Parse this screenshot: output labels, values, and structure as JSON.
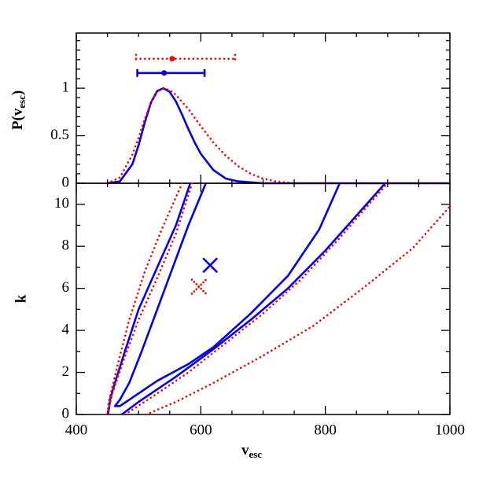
{
  "chart_data": [
    {
      "type": "line",
      "ylabel": [
        "P(v",
        "esc",
        ")"
      ],
      "xlim": [
        400,
        1000
      ],
      "xticks": [
        400,
        600,
        800,
        1000
      ],
      "xminor": [
        450,
        500,
        550,
        650,
        700,
        750,
        850,
        900,
        950
      ],
      "ylim": [
        0,
        1.58
      ],
      "yticks": [
        0,
        0.5,
        1
      ],
      "yminor": [
        0.1,
        0.2,
        0.3,
        0.4,
        0.6,
        0.7,
        0.8,
        0.9,
        1.1,
        1.2,
        1.3,
        1.4,
        1.5
      ],
      "series": [
        {
          "color": "#0000ee",
          "style": "solid",
          "x": [
            450,
            470,
            490,
            500,
            510,
            520,
            530,
            540,
            550,
            560,
            570,
            580,
            590,
            600,
            620,
            640,
            660,
            700,
            1000
          ],
          "values": [
            0,
            0.02,
            0.2,
            0.4,
            0.64,
            0.85,
            0.97,
            1.0,
            0.96,
            0.86,
            0.72,
            0.57,
            0.43,
            0.31,
            0.14,
            0.05,
            0.02,
            0,
            0
          ]
        },
        {
          "color": "#ff0000",
          "style": "dotted",
          "x": [
            450,
            470,
            490,
            500,
            510,
            520,
            530,
            540,
            550,
            560,
            580,
            600,
            620,
            640,
            660,
            680,
            700,
            720,
            750,
            1000
          ],
          "values": [
            0,
            0.06,
            0.3,
            0.48,
            0.68,
            0.85,
            0.96,
            1.0,
            0.98,
            0.93,
            0.78,
            0.6,
            0.43,
            0.29,
            0.18,
            0.1,
            0.05,
            0.02,
            0,
            0
          ]
        }
      ],
      "errorbars": [
        {
          "color": "#ff0000",
          "style": "dotted",
          "x": 554,
          "y": 1.31,
          "xlow": 496,
          "xhigh": 655
        },
        {
          "color": "#0000ee",
          "style": "solid",
          "x": 541,
          "y": 1.16,
          "xlow": 498,
          "xhigh": 606
        }
      ]
    },
    {
      "type": "line",
      "xlabel": [
        "v",
        "esc"
      ],
      "ylabel": "k",
      "xlim": [
        400,
        1000
      ],
      "xticks": [
        400,
        600,
        800,
        1000
      ],
      "xminor": [
        450,
        500,
        550,
        650,
        700,
        750,
        850,
        900,
        950
      ],
      "ylim": [
        0,
        11
      ],
      "yticks": [
        0,
        2,
        4,
        6,
        8,
        10
      ],
      "yminor": [
        1,
        3,
        5,
        7,
        9,
        11
      ],
      "series": [
        {
          "color": "#0000ee",
          "style": "solid",
          "x": [
            608,
            580,
            555,
            530,
            505,
            485,
            470,
            462,
            470,
            490,
            530,
            580,
            620,
            680,
            740,
            790,
            823
          ],
          "values": [
            11,
            9,
            7,
            5,
            3,
            1.5,
            0.7,
            0.4,
            0.4,
            0.8,
            1.6,
            2.4,
            3.2,
            4.8,
            6.6,
            8.8,
            11
          ]
        },
        {
          "color": "#0000ee",
          "style": "solid",
          "x": [
            583,
            560,
            530,
            500,
            478,
            462,
            455,
            451
          ],
          "values": [
            11,
            9,
            7,
            5,
            3,
            1.5,
            0.8,
            0
          ]
        },
        {
          "color": "#0000ee",
          "style": "solid",
          "x": [
            473,
            500,
            560,
            620,
            680,
            740,
            800,
            860,
            896
          ],
          "values": [
            0,
            0.6,
            1.8,
            3.1,
            4.5,
            6,
            7.8,
            9.8,
            11
          ]
        },
        {
          "color": "#ff0000",
          "style": "dotted",
          "x": [
            586,
            560,
            530,
            500,
            475,
            458,
            450
          ],
          "values": [
            11,
            8.6,
            6.5,
            4.5,
            2.5,
            1,
            0
          ]
        },
        {
          "color": "#ff0000",
          "style": "dotted",
          "x": [
            478,
            520,
            580,
            640,
            700,
            760,
            820,
            870,
            900
          ],
          "values": [
            0,
            0.8,
            2,
            3.4,
            4.8,
            6.4,
            8.3,
            10,
            11
          ]
        },
        {
          "color": "#ff0000",
          "style": "dotted",
          "x": [
            570,
            540,
            510,
            485,
            465,
            452,
            450
          ],
          "values": [
            11,
            9,
            6.8,
            4.5,
            2.2,
            0.6,
            0
          ]
        },
        {
          "color": "#ff0000",
          "style": "dotted",
          "x": [
            512,
            560,
            620,
            700,
            780,
            860,
            940,
            1000
          ],
          "values": [
            0,
            0.6,
            1.5,
            2.8,
            4.2,
            6,
            7.9,
            9.9
          ]
        }
      ],
      "markers": [
        {
          "color": "#0000ee",
          "style": "solid",
          "x": 615,
          "y": 7.1
        },
        {
          "color": "#ff0000",
          "style": "dotted",
          "x": 597,
          "y": 6.08
        }
      ]
    }
  ]
}
